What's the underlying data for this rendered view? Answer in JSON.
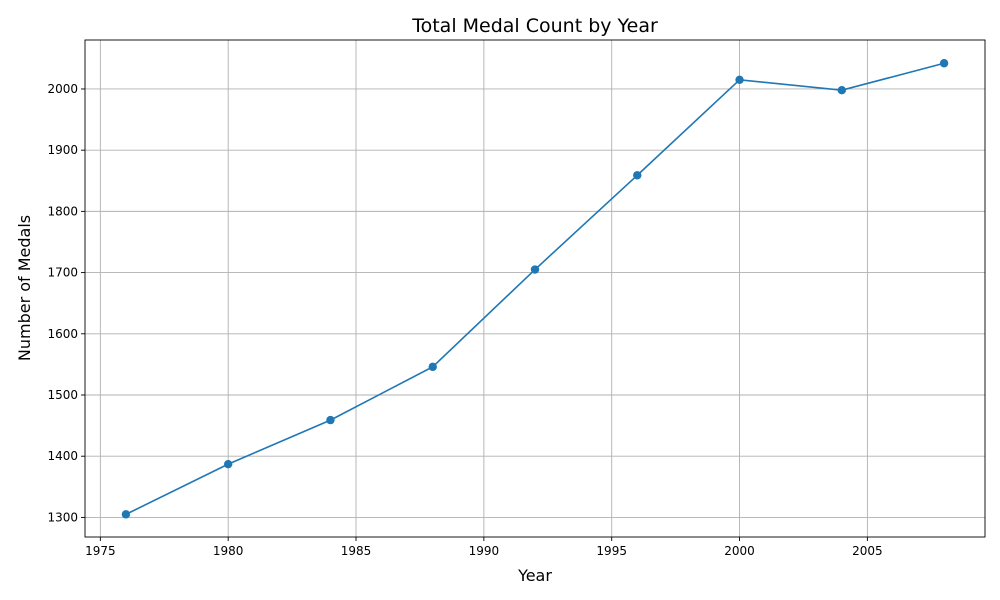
{
  "chart_data": {
    "type": "line",
    "title": "Total Medal Count by Year",
    "xlabel": "Year",
    "ylabel": "Number of Medals",
    "xlim": [
      1974.4,
      2009.6
    ],
    "ylim": [
      1268,
      2080
    ],
    "xticks": [
      1975,
      1980,
      1985,
      1990,
      1995,
      2000,
      2005
    ],
    "yticks": [
      1300,
      1400,
      1500,
      1600,
      1700,
      1800,
      1900,
      2000
    ],
    "grid": true,
    "line_color": "#1f77b4",
    "series": [
      {
        "x": [
          1976,
          1980,
          1984,
          1988,
          1992,
          1996,
          2000,
          2004,
          2008
        ],
        "values": [
          1305,
          1387,
          1459,
          1546,
          1705,
          1859,
          2015,
          1998,
          2042
        ]
      }
    ]
  }
}
